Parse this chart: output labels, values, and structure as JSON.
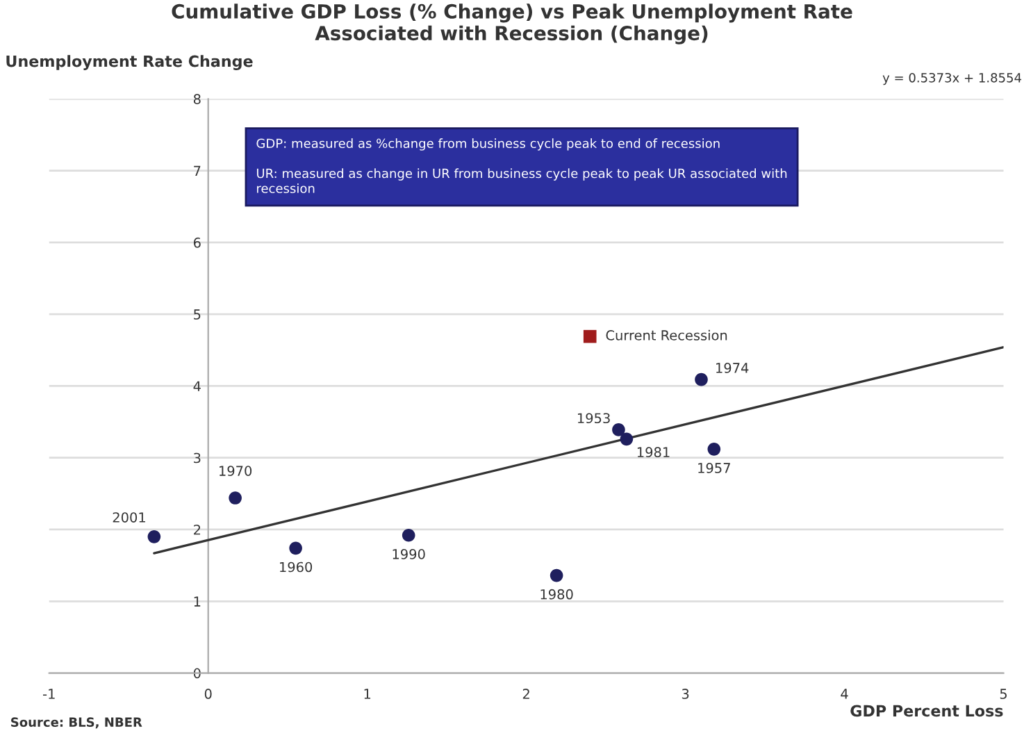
{
  "chart_data": {
    "type": "scatter",
    "title": "Cumulative GDP Loss (% Change) vs Peak Unemployment Rate\nAssociated with Recession (Change)",
    "xlabel": "GDP Percent Loss",
    "ylabel": "Unemployment Rate Change",
    "xlim": [
      -1,
      5
    ],
    "xticks": [
      -1,
      0,
      1,
      2,
      3,
      4,
      5
    ],
    "ylim": [
      0,
      8
    ],
    "yticks": [
      0,
      1,
      2,
      3,
      4,
      5,
      6,
      7,
      8
    ],
    "grid": "y",
    "legend": false,
    "marker": "circle",
    "series": [
      {
        "color": "#1f1f5e",
        "x": [
          -0.34,
          0.17,
          0.55,
          1.26,
          2.19,
          2.58,
          2.63,
          3.1,
          3.18
        ],
        "values": [
          1.9,
          2.44,
          1.74,
          1.92,
          1.36,
          3.39,
          3.26,
          4.09,
          3.12
        ]
      },
      {
        "type": "scatter",
        "name": "Current Recession",
        "color": "#a01c1c",
        "marker": "square",
        "x": [
          2.4
        ],
        "values": [
          4.69
        ]
      },
      {
        "type": "line",
        "marker": "none",
        "color": "#333333",
        "x": [
          -0.34,
          5
        ],
        "values": [
          1.67,
          4.54
        ]
      }
    ],
    "annotations": [
      {
        "text": "2001",
        "x": -0.34,
        "y": 1.9
      },
      {
        "text": "1970",
        "x": 0.17,
        "y": 2.44
      },
      {
        "text": "1960",
        "x": 0.55,
        "y": 1.74
      },
      {
        "text": "1990",
        "x": 1.26,
        "y": 1.92
      },
      {
        "text": "1980",
        "x": 2.19,
        "y": 1.36
      },
      {
        "text": "1953",
        "x": 2.58,
        "y": 3.39
      },
      {
        "text": "1981",
        "x": 2.63,
        "y": 3.26
      },
      {
        "text": "1974",
        "x": 3.1,
        "y": 4.09
      },
      {
        "text": "1957",
        "x": 3.18,
        "y": 3.12
      },
      "y = 0.5373x + 1.8554",
      "GDP: measured as %change from business cycle peak to end of recession\n\nUR: measured as change in UR from business cycle peak to peak UR associated with\nrecession",
      "Source: BLS, NBER"
    ]
  }
}
